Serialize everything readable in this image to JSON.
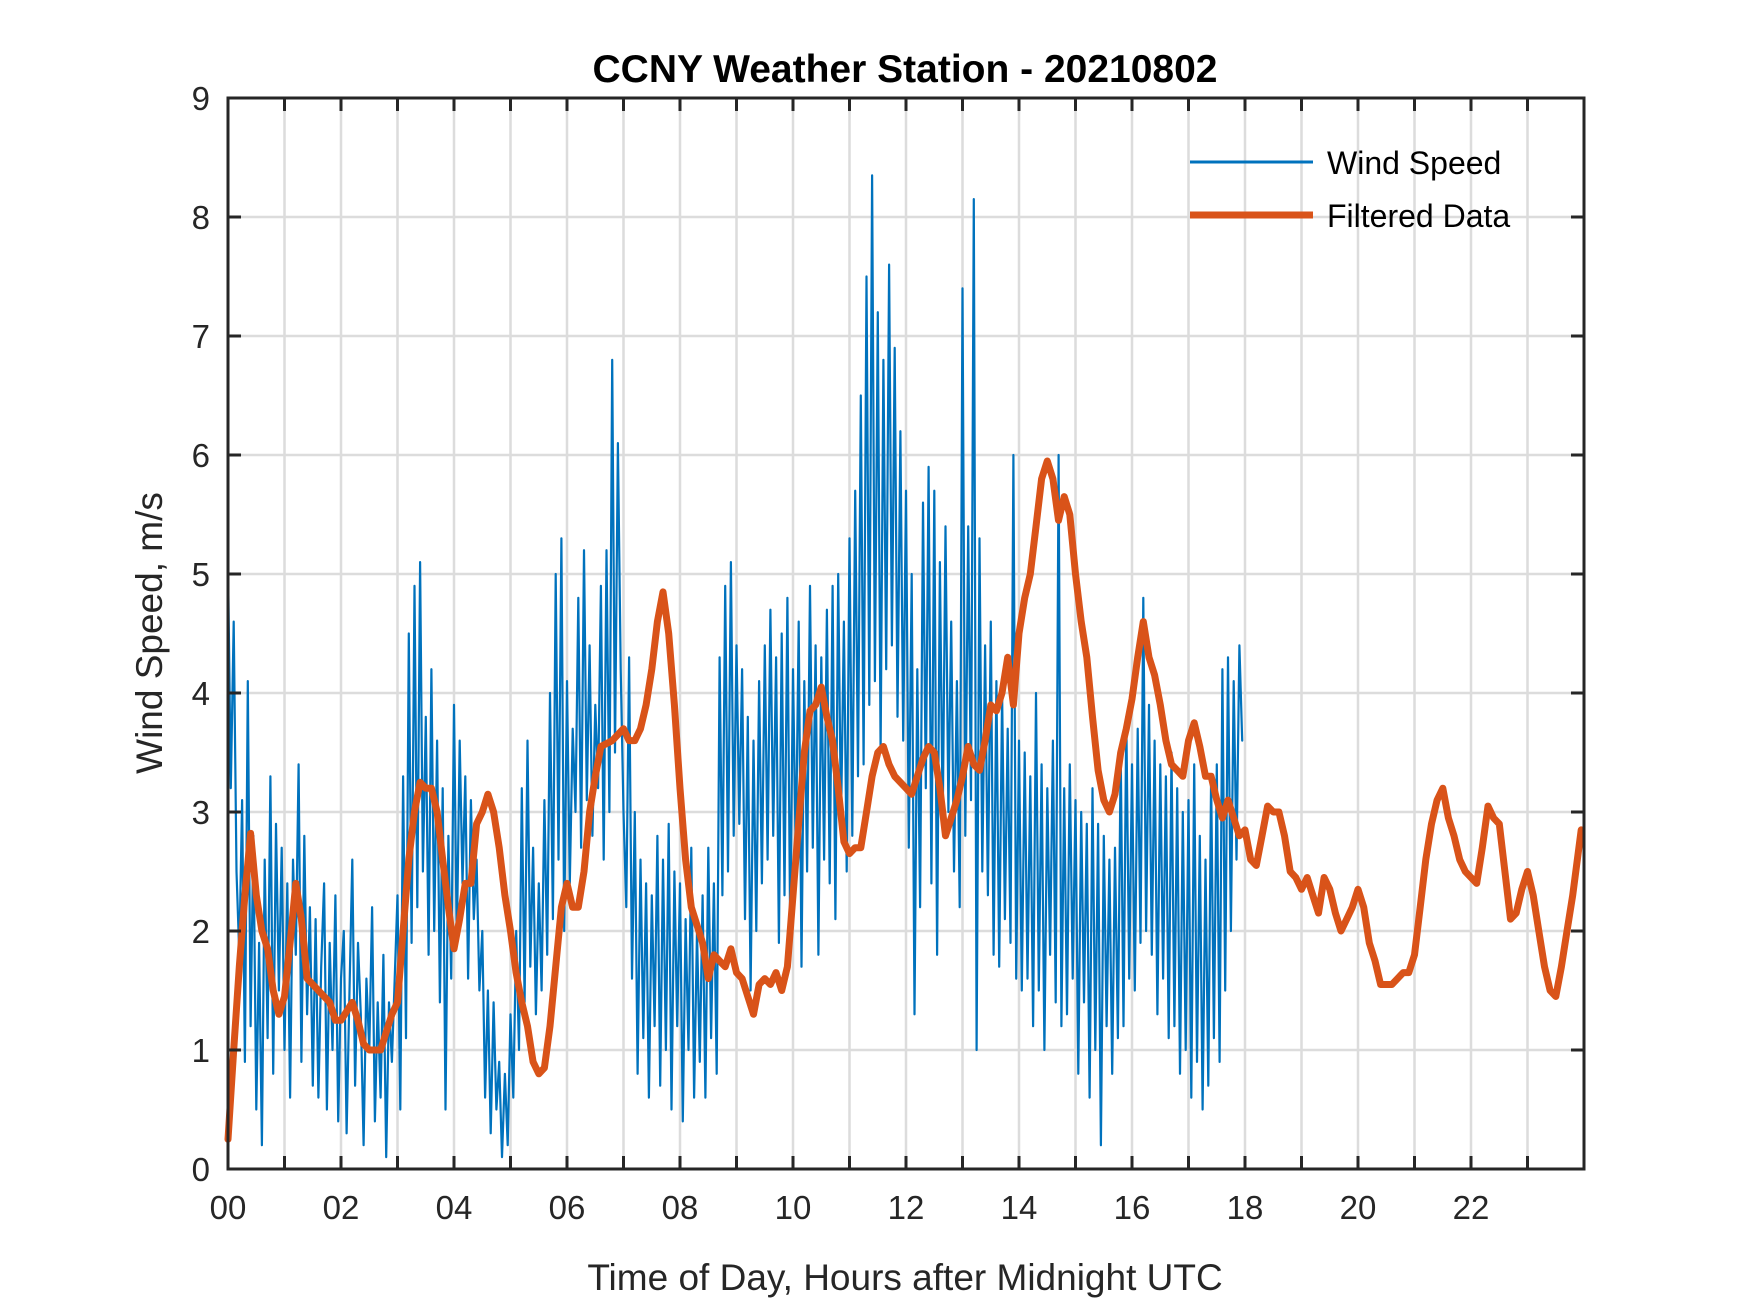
{
  "chart_data": {
    "type": "line",
    "title": "CCNY Weather Station - 20210802",
    "xlabel": "Time of Day, Hours after Midnight UTC",
    "ylabel": "Wind Speed, m/s",
    "xlim": [
      0,
      24
    ],
    "ylim": [
      0,
      9
    ],
    "grid": true,
    "legend_position": "top-right",
    "x_ticks": [
      0,
      2,
      4,
      6,
      8,
      10,
      12,
      14,
      16,
      18,
      20,
      22
    ],
    "x_tick_labels": [
      "00",
      "02",
      "04",
      "06",
      "08",
      "10",
      "12",
      "14",
      "16",
      "18",
      "20",
      "22"
    ],
    "x_minor_grid_step": 1,
    "y_ticks": [
      0,
      1,
      2,
      3,
      4,
      5,
      6,
      7,
      8,
      9
    ],
    "y_tick_labels": [
      "0",
      "1",
      "2",
      "3",
      "4",
      "5",
      "6",
      "7",
      "8",
      "9"
    ],
    "series": [
      {
        "name": "Wind Speed",
        "color": "#0072BD",
        "x_start": 0,
        "x_step": 0.05,
        "values": [
          5.1,
          3.2,
          4.6,
          2.5,
          1.8,
          3.1,
          0.9,
          4.1,
          1.2,
          2.8,
          0.5,
          1.9,
          0.2,
          2.6,
          1.1,
          3.3,
          0.8,
          2.9,
          1.5,
          2.7,
          1.0,
          2.4,
          0.6,
          2.6,
          1.8,
          3.4,
          0.9,
          2.8,
          1.3,
          2.2,
          0.7,
          2.1,
          0.6,
          1.7,
          2.4,
          0.5,
          1.9,
          1.0,
          2.3,
          0.4,
          1.6,
          2.0,
          0.3,
          1.5,
          2.6,
          0.7,
          1.9,
          1.3,
          0.2,
          1.6,
          1.0,
          2.2,
          0.4,
          1.4,
          0.6,
          1.8,
          0.1,
          1.4,
          0.9,
          1.6,
          2.3,
          0.5,
          3.3,
          1.1,
          4.5,
          1.9,
          4.9,
          2.2,
          5.1,
          2.5,
          3.8,
          1.8,
          4.2,
          2.0,
          3.6,
          1.4,
          3.2,
          0.5,
          2.8,
          1.6,
          3.9,
          1.9,
          3.6,
          2.4,
          3.3,
          1.6,
          3.1,
          2.1,
          2.6,
          1.5,
          2.0,
          0.6,
          1.5,
          0.3,
          1.4,
          0.5,
          0.9,
          0.1,
          0.8,
          0.2,
          1.3,
          0.6,
          2.0,
          1.0,
          3.2,
          1.4,
          3.6,
          1.7,
          2.7,
          1.3,
          2.4,
          1.5,
          3.1,
          1.8,
          4.0,
          2.1,
          5.0,
          2.6,
          5.3,
          2.0,
          4.1,
          2.4,
          3.7,
          3.0,
          4.8,
          2.7,
          5.2,
          3.1,
          4.4,
          2.8,
          3.9,
          3.2,
          4.9,
          2.6,
          5.2,
          3.0,
          6.8,
          3.5,
          6.1,
          4.2,
          3.0,
          2.2,
          4.3,
          1.6,
          3.0,
          0.8,
          2.6,
          1.1,
          2.4,
          0.6,
          2.3,
          1.2,
          2.8,
          0.7,
          2.6,
          1.0,
          2.9,
          0.5,
          2.5,
          1.2,
          2.4,
          0.4,
          2.1,
          1.0,
          2.7,
          0.6,
          2.0,
          0.9,
          2.3,
          0.6,
          2.7,
          1.1,
          2.4,
          0.8,
          4.3,
          2.3,
          4.9,
          2.5,
          5.1,
          2.8,
          4.4,
          2.9,
          4.2,
          2.1,
          3.8,
          1.5,
          3.6,
          2.0,
          4.1,
          2.4,
          4.4,
          2.6,
          4.7,
          2.8,
          4.3,
          1.9,
          4.5,
          2.3,
          4.8,
          2.0,
          4.2,
          2.6,
          4.6,
          1.7,
          4.1,
          2.5,
          4.9,
          2.7,
          4.4,
          1.8,
          4.3,
          2.6,
          4.7,
          2.4,
          4.9,
          2.1,
          5.0,
          2.9,
          4.6,
          2.5,
          5.3,
          2.8,
          5.7,
          3.3,
          6.5,
          3.4,
          7.5,
          3.9,
          8.35,
          4.1,
          7.2,
          3.5,
          6.8,
          4.2,
          7.6,
          4.4,
          6.9,
          3.8,
          6.2,
          3.6,
          5.7,
          2.7,
          5.0,
          1.3,
          4.2,
          2.2,
          5.6,
          3.2,
          5.9,
          2.4,
          5.7,
          1.8,
          5.1,
          2.9,
          5.4,
          3.0,
          4.6,
          2.5,
          4.1,
          2.2,
          7.4,
          2.8,
          5.4,
          3.1,
          8.15,
          1.0,
          5.3,
          2.5,
          4.4,
          2.3,
          4.6,
          1.8,
          4.1,
          1.7,
          4.0,
          2.1,
          3.7,
          1.9,
          6.0,
          1.6,
          3.6,
          1.5,
          3.5,
          1.6,
          3.3,
          1.2,
          4.0,
          1.5,
          3.4,
          1.0,
          3.2,
          1.8,
          3.6,
          1.4,
          6.0,
          1.2,
          3.2,
          1.3,
          3.4,
          1.6,
          3.1,
          0.8,
          3.0,
          1.4,
          2.9,
          0.6,
          3.2,
          1.0,
          2.9,
          0.2,
          2.8,
          1.2,
          2.6,
          0.8,
          2.7,
          1.1,
          3.5,
          1.2,
          3.8,
          1.6,
          3.4,
          1.5,
          3.7,
          1.9,
          4.8,
          2.0,
          3.9,
          1.8,
          3.6,
          1.3,
          3.4,
          1.6,
          3.3,
          1.1,
          3.5,
          1.2,
          3.2,
          0.8,
          3.0,
          1.0,
          3.1,
          0.6,
          3.4,
          0.9,
          2.8,
          0.5,
          2.6,
          0.7,
          3.3,
          1.1,
          3.4,
          0.9,
          4.2,
          1.5,
          4.3,
          2.0,
          4.1,
          2.6,
          4.4,
          3.6
        ]
      },
      {
        "name": "Filtered Data",
        "color": "#D95319",
        "x": [
          0.0,
          0.1,
          0.2,
          0.3,
          0.4,
          0.5,
          0.6,
          0.7,
          0.8,
          0.9,
          1.0,
          1.1,
          1.2,
          1.3,
          1.4,
          1.5,
          1.6,
          1.8,
          1.9,
          2.0,
          2.2,
          2.3,
          2.4,
          2.5,
          2.6,
          2.7,
          2.8,
          2.9,
          3.0,
          3.1,
          3.2,
          3.3,
          3.4,
          3.5,
          3.6,
          3.7,
          3.8,
          3.9,
          4.0,
          4.1,
          4.2,
          4.3,
          4.4,
          4.5,
          4.6,
          4.7,
          4.8,
          4.9,
          5.0,
          5.1,
          5.2,
          5.3,
          5.4,
          5.5,
          5.6,
          5.7,
          5.8,
          5.9,
          6.0,
          6.1,
          6.2,
          6.3,
          6.4,
          6.5,
          6.6,
          6.8,
          7.0,
          7.1,
          7.2,
          7.3,
          7.4,
          7.5,
          7.6,
          7.7,
          7.8,
          7.9,
          8.0,
          8.1,
          8.2,
          8.4,
          8.5,
          8.6,
          8.7,
          8.8,
          8.9,
          9.0,
          9.1,
          9.2,
          9.3,
          9.4,
          9.5,
          9.6,
          9.7,
          9.8,
          9.9,
          10.0,
          10.1,
          10.2,
          10.3,
          10.4,
          10.5,
          10.6,
          10.7,
          10.8,
          10.9,
          11.0,
          11.1,
          11.2,
          11.3,
          11.4,
          11.5,
          11.6,
          11.7,
          11.8,
          11.9,
          12.0,
          12.1,
          12.2,
          12.3,
          12.4,
          12.5,
          12.6,
          12.7,
          12.8,
          12.9,
          13.0,
          13.1,
          13.2,
          13.3,
          13.4,
          13.5,
          13.6,
          13.7,
          13.8,
          13.9,
          14.0,
          14.1,
          14.2,
          14.3,
          14.4,
          14.5,
          14.6,
          14.7,
          14.8,
          14.9,
          15.0,
          15.1,
          15.2,
          15.3,
          15.4,
          15.5,
          15.6,
          15.7,
          15.8,
          15.9,
          16.0,
          16.1,
          16.2,
          16.3,
          16.4,
          16.5,
          16.6,
          16.7,
          16.8,
          16.9,
          17.0,
          17.1,
          17.2,
          17.3,
          17.4,
          17.5,
          17.6,
          17.7,
          17.8,
          17.9,
          18.0,
          18.1,
          18.2,
          18.3,
          18.4,
          18.5,
          18.6,
          18.7,
          18.8,
          18.9,
          19.0,
          19.1,
          19.2,
          19.3,
          19.4,
          19.5,
          19.6,
          19.7,
          19.8,
          19.9,
          20.0,
          20.1,
          20.2,
          20.3,
          20.4,
          20.5,
          20.6,
          20.7,
          20.8,
          20.9,
          21.0,
          21.1,
          21.2,
          21.3,
          21.4,
          21.5,
          21.6,
          21.7,
          21.8,
          21.9,
          22.0,
          22.1,
          22.2,
          22.3,
          22.4,
          22.5,
          22.6,
          22.7,
          22.8,
          22.9,
          23.0,
          23.1,
          23.2,
          23.3,
          23.4,
          23.5,
          23.6,
          23.7,
          23.8,
          23.95
        ],
        "values": [
          0.25,
          1.0,
          1.7,
          2.3,
          2.82,
          2.3,
          2.0,
          1.85,
          1.5,
          1.3,
          1.45,
          1.9,
          2.4,
          2.1,
          1.6,
          1.55,
          1.5,
          1.4,
          1.25,
          1.25,
          1.4,
          1.25,
          1.05,
          1.0,
          1.0,
          1.0,
          1.15,
          1.3,
          1.4,
          2.0,
          2.6,
          3.0,
          3.25,
          3.2,
          3.2,
          3.0,
          2.6,
          2.2,
          1.85,
          2.1,
          2.4,
          2.4,
          2.9,
          3.0,
          3.15,
          3.0,
          2.7,
          2.3,
          2.0,
          1.65,
          1.4,
          1.2,
          0.9,
          0.8,
          0.85,
          1.2,
          1.7,
          2.2,
          2.4,
          2.2,
          2.2,
          2.5,
          3.0,
          3.3,
          3.55,
          3.6,
          3.7,
          3.6,
          3.6,
          3.7,
          3.9,
          4.2,
          4.6,
          4.85,
          4.5,
          3.9,
          3.2,
          2.6,
          2.2,
          1.9,
          1.6,
          1.8,
          1.75,
          1.7,
          1.85,
          1.65,
          1.6,
          1.45,
          1.3,
          1.55,
          1.6,
          1.55,
          1.65,
          1.5,
          1.7,
          2.3,
          2.9,
          3.5,
          3.85,
          3.9,
          4.05,
          3.8,
          3.6,
          3.2,
          2.75,
          2.65,
          2.7,
          2.7,
          3.0,
          3.3,
          3.5,
          3.55,
          3.4,
          3.3,
          3.25,
          3.2,
          3.15,
          3.3,
          3.45,
          3.55,
          3.5,
          3.2,
          2.8,
          2.95,
          3.1,
          3.3,
          3.55,
          3.4,
          3.35,
          3.6,
          3.9,
          3.85,
          4.0,
          4.3,
          3.9,
          4.5,
          4.8,
          5.0,
          5.4,
          5.8,
          5.95,
          5.8,
          5.45,
          5.65,
          5.5,
          5.0,
          4.6,
          4.3,
          3.8,
          3.35,
          3.1,
          3.0,
          3.15,
          3.5,
          3.7,
          3.95,
          4.3,
          4.6,
          4.3,
          4.15,
          3.9,
          3.6,
          3.4,
          3.35,
          3.3,
          3.6,
          3.75,
          3.55,
          3.3,
          3.3,
          3.1,
          2.95,
          3.1,
          2.95,
          2.8,
          2.85,
          2.6,
          2.55,
          2.8,
          3.05,
          3.0,
          3.0,
          2.8,
          2.5,
          2.45,
          2.35,
          2.45,
          2.3,
          2.15,
          2.45,
          2.35,
          2.15,
          2.0,
          2.1,
          2.2,
          2.35,
          2.2,
          1.9,
          1.75,
          1.55,
          1.55,
          1.55,
          1.6,
          1.65,
          1.65,
          1.8,
          2.2,
          2.6,
          2.9,
          3.1,
          3.2,
          2.95,
          2.8,
          2.6,
          2.5,
          2.45,
          2.4,
          2.7,
          3.05,
          2.95,
          2.9,
          2.5,
          2.1,
          2.15,
          2.35,
          2.5,
          2.3,
          2.0,
          1.7,
          1.5,
          1.45,
          1.7,
          2.0,
          2.3,
          2.85
        ]
      }
    ]
  }
}
